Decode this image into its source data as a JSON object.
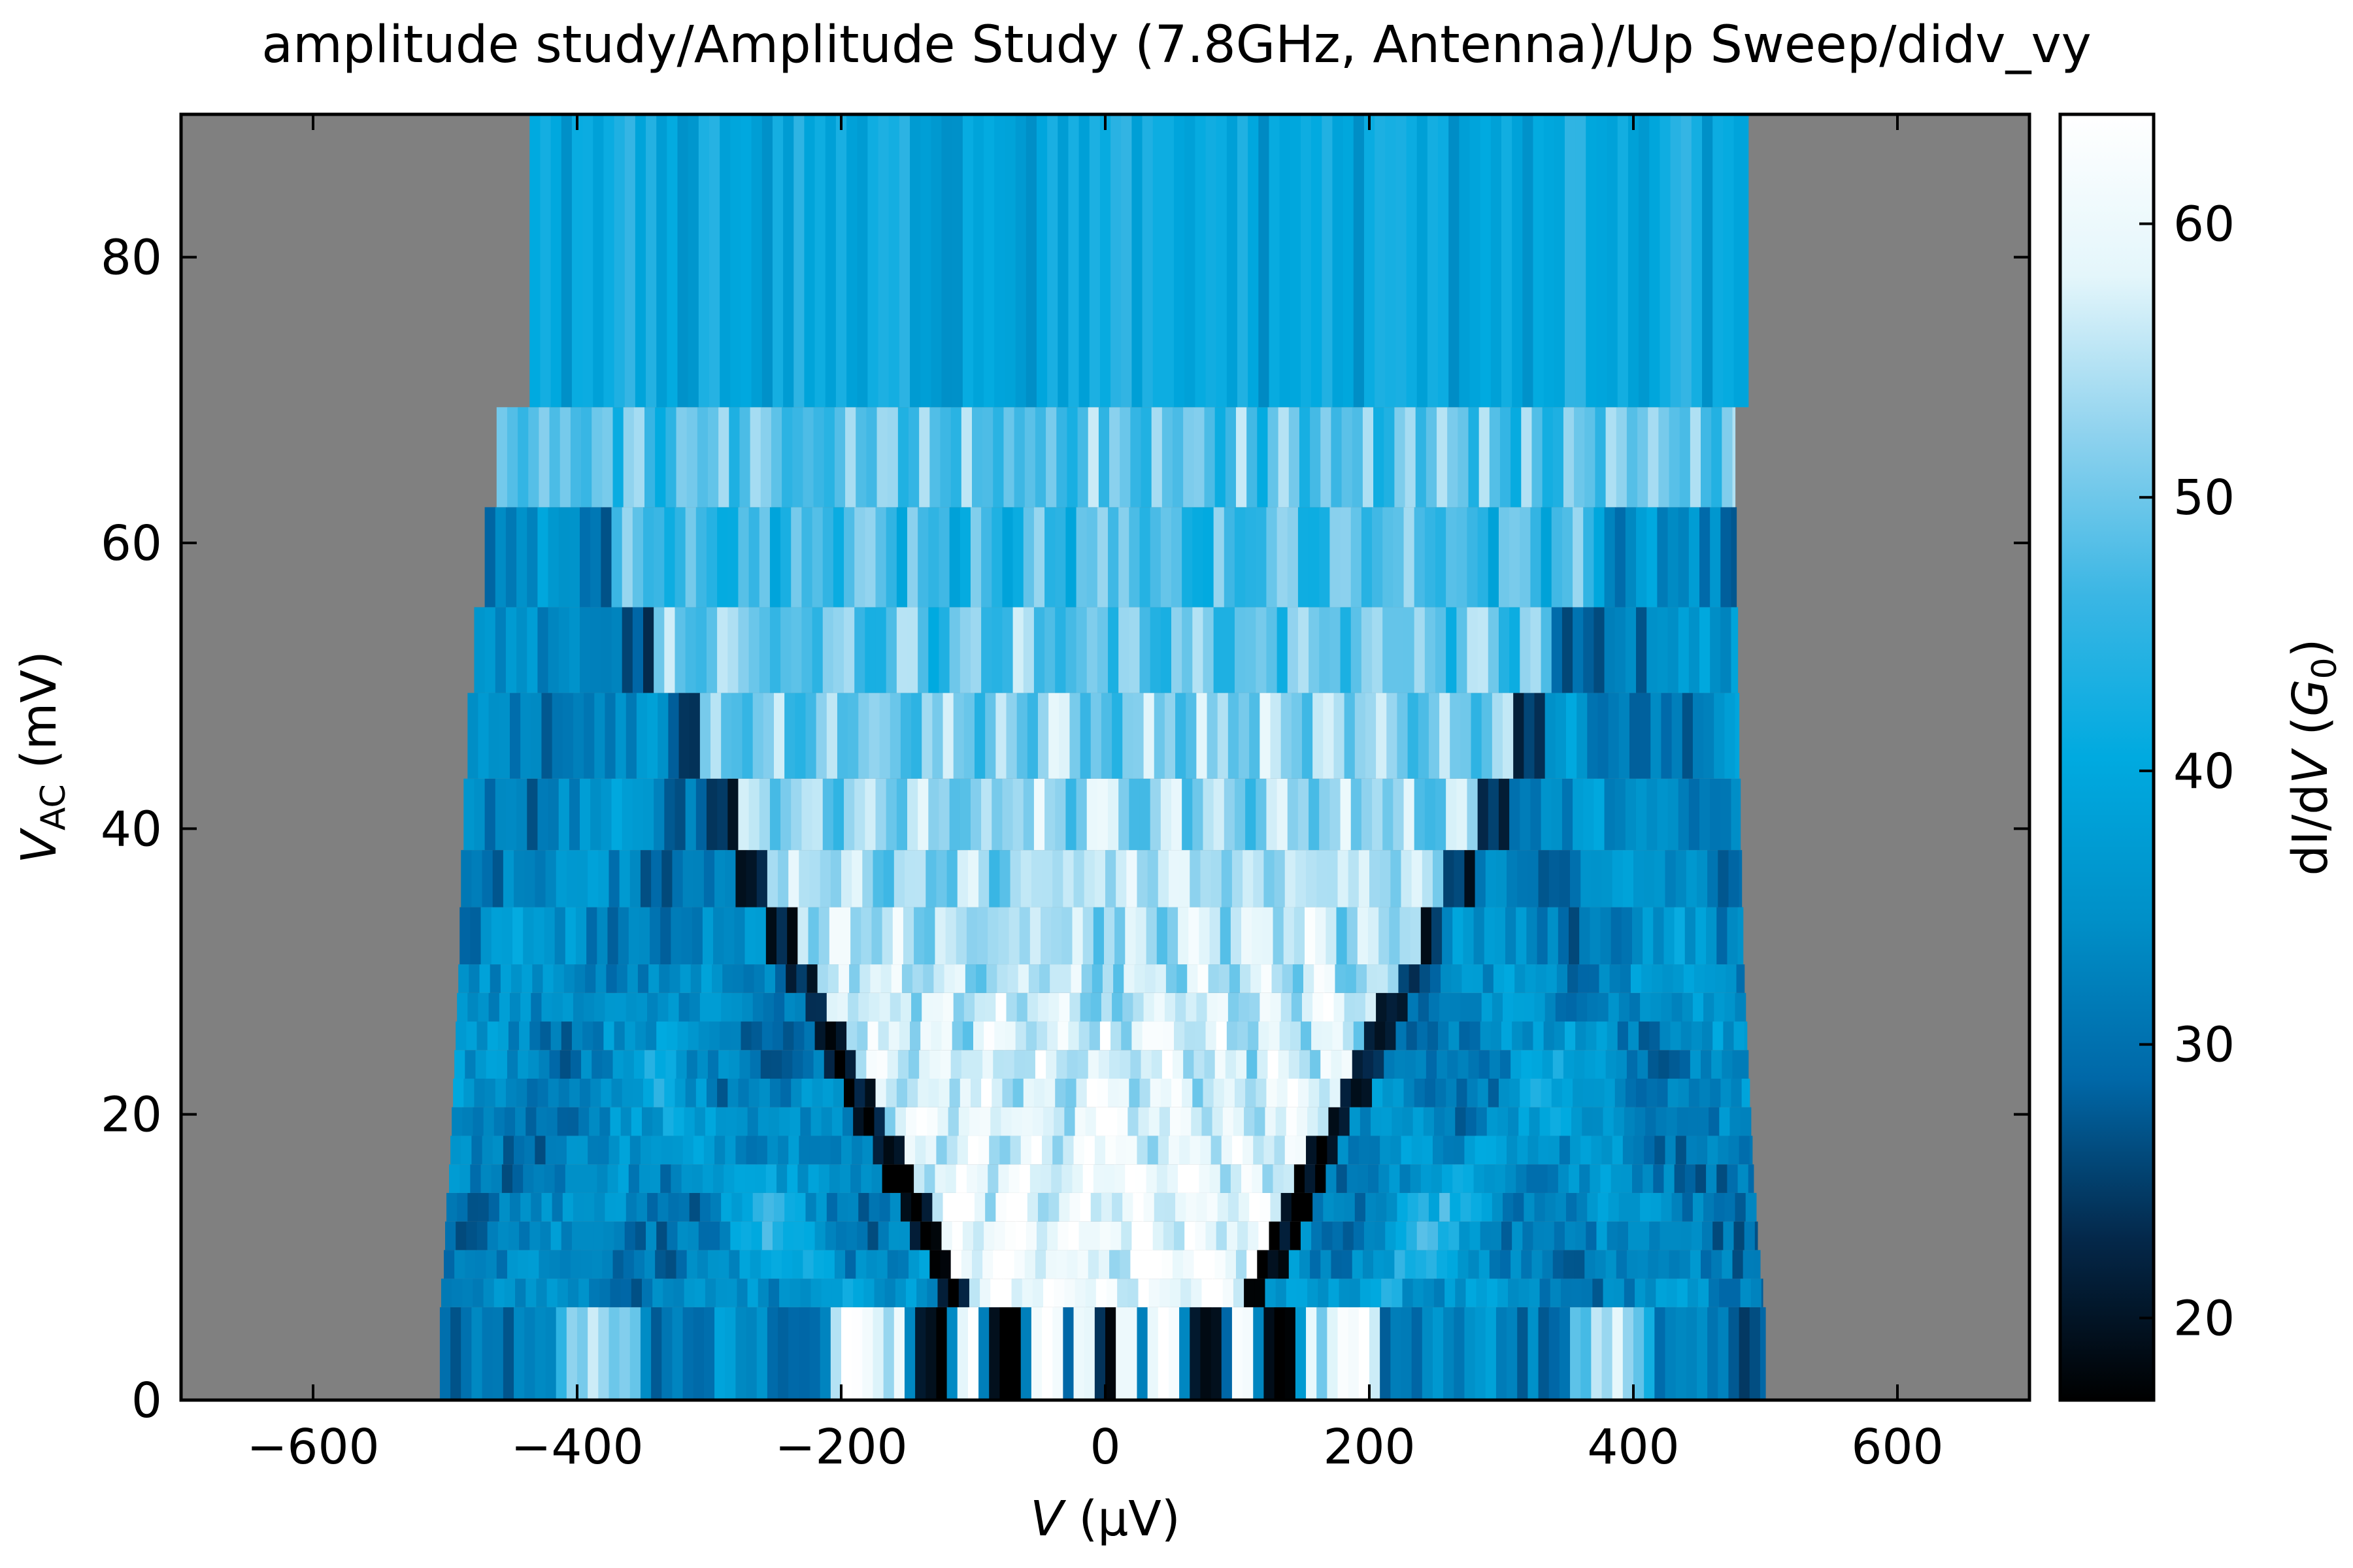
{
  "title": "amplitude study/Amplitude Study (7.8GHz, Antenna)/Up Sweep/didv_vy",
  "chart_data": {
    "type": "heatmap",
    "title": "amplitude study/Amplitude Study (7.8GHz, Antenna)/Up Sweep/didv_vy",
    "xlabel": {
      "var": "V",
      "unit": " (μV)"
    },
    "ylabel": {
      "var": "V",
      "sub": "AC",
      "unit": " (mV)"
    },
    "xlim": [
      -700,
      700
    ],
    "ylim": [
      0,
      90
    ],
    "xticks": [
      -600,
      -400,
      -200,
      0,
      200,
      400,
      600
    ],
    "xtick_labels": [
      "−600",
      "−400",
      "−200",
      "0",
      "200",
      "400",
      "600"
    ],
    "yticks": [
      0,
      20,
      40,
      60,
      80
    ],
    "ytick_labels": [
      "0",
      "20",
      "40",
      "60",
      "80"
    ],
    "colorbar": {
      "label": {
        "pre": "dI/d",
        "var": "V",
        "mid": " (",
        "var2": "G",
        "sub2": "0",
        "post": ")"
      },
      "range": [
        17,
        64
      ],
      "ticks": [
        20,
        30,
        40,
        50,
        60
      ],
      "tick_labels": [
        "20",
        "30",
        "40",
        "50",
        "60"
      ],
      "stops": [
        "#000000",
        "#04284a",
        "#0068a8",
        "#0090c8",
        "#00aae0",
        "#3ab6e4",
        "#8ed2ee",
        "#e4f6fb",
        "#ffffff"
      ]
    },
    "background": "#808080",
    "bands": [
      {
        "y0": 0,
        "y1": 6.5,
        "xmin": -504,
        "xmax": 500
      },
      {
        "y0": 6.5,
        "y1": 8.5,
        "xmin": -503,
        "xmax": 498
      },
      {
        "y0": 8.5,
        "y1": 10.5,
        "xmin": -501,
        "xmax": 496
      },
      {
        "y0": 10.5,
        "y1": 12.5,
        "xmin": -500,
        "xmax": 494
      },
      {
        "y0": 12.5,
        "y1": 14.5,
        "xmin": -499,
        "xmax": 493
      },
      {
        "y0": 14.5,
        "y1": 16.5,
        "xmin": -497,
        "xmax": 491
      },
      {
        "y0": 16.5,
        "y1": 18.5,
        "xmin": -496,
        "xmax": 490
      },
      {
        "y0": 18.5,
        "y1": 20.5,
        "xmin": -495,
        "xmax": 489
      },
      {
        "y0": 20.5,
        "y1": 22.5,
        "xmin": -494,
        "xmax": 488
      },
      {
        "y0": 22.5,
        "y1": 24.5,
        "xmin": -493,
        "xmax": 487
      },
      {
        "y0": 24.5,
        "y1": 26.5,
        "xmin": -492,
        "xmax": 486
      },
      {
        "y0": 26.5,
        "y1": 28.5,
        "xmin": -491,
        "xmax": 485
      },
      {
        "y0": 28.5,
        "y1": 30.5,
        "xmin": -490,
        "xmax": 484
      },
      {
        "y0": 30.5,
        "y1": 34.5,
        "xmin": -489,
        "xmax": 483
      },
      {
        "y0": 34.5,
        "y1": 38.5,
        "xmin": -488,
        "xmax": 482
      },
      {
        "y0": 38.5,
        "y1": 43.5,
        "xmin": -486,
        "xmax": 481
      },
      {
        "y0": 43.5,
        "y1": 49.5,
        "xmin": -483,
        "xmax": 480
      },
      {
        "y0": 49.5,
        "y1": 55.5,
        "xmin": -478,
        "xmax": 479
      },
      {
        "y0": 55.5,
        "y1": 62.5,
        "xmin": -470,
        "xmax": 478
      },
      {
        "y0": 62.5,
        "y1": 69.5,
        "xmin": -461,
        "xmax": 477
      },
      {
        "y0": 69.5,
        "y1": 90,
        "xmin": -436,
        "xmax": 487
      }
    ]
  }
}
